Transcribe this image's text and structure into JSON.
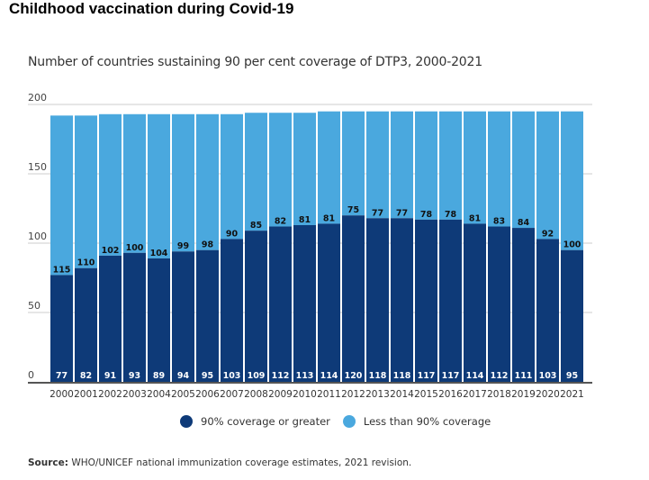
{
  "header": {
    "title": "Childhood vaccination during Covid-19"
  },
  "footer": {
    "source_label": "Source:",
    "source_text": " WHO/UNICEF national immunization coverage estimates, 2021 revision."
  },
  "colors": {
    "series_90_or_greater": "#0e3a78",
    "series_less_than_90": "#4aa8de",
    "grid": "#cccccc",
    "axis": "#555555"
  },
  "chart_data": {
    "type": "bar",
    "stacked": true,
    "title": "Number of countries sustaining 90 per cent coverage of DTP3, 2000-2021",
    "xlabel": "",
    "ylabel": "",
    "ylim": [
      0,
      200
    ],
    "yticks": [
      0,
      50,
      100,
      150,
      200
    ],
    "grid": true,
    "legend_position": "bottom",
    "categories": [
      "2000",
      "2001",
      "2002",
      "2003",
      "2004",
      "2005",
      "2006",
      "2007",
      "2008",
      "2009",
      "2010",
      "2011",
      "2012",
      "2013",
      "2014",
      "2015",
      "2016",
      "2017",
      "2018",
      "2019",
      "2020",
      "2021"
    ],
    "series": [
      {
        "name": "90% coverage or greater",
        "color": "#0e3a78",
        "values": [
          77,
          82,
          91,
          93,
          89,
          94,
          95,
          103,
          109,
          112,
          113,
          114,
          120,
          118,
          118,
          117,
          117,
          114,
          112,
          111,
          103,
          95
        ]
      },
      {
        "name": "Less than 90% coverage",
        "color": "#4aa8de",
        "values": [
          115,
          110,
          102,
          100,
          104,
          99,
          98,
          90,
          85,
          82,
          81,
          81,
          75,
          77,
          77,
          78,
          78,
          81,
          83,
          84,
          92,
          100
        ]
      }
    ]
  }
}
